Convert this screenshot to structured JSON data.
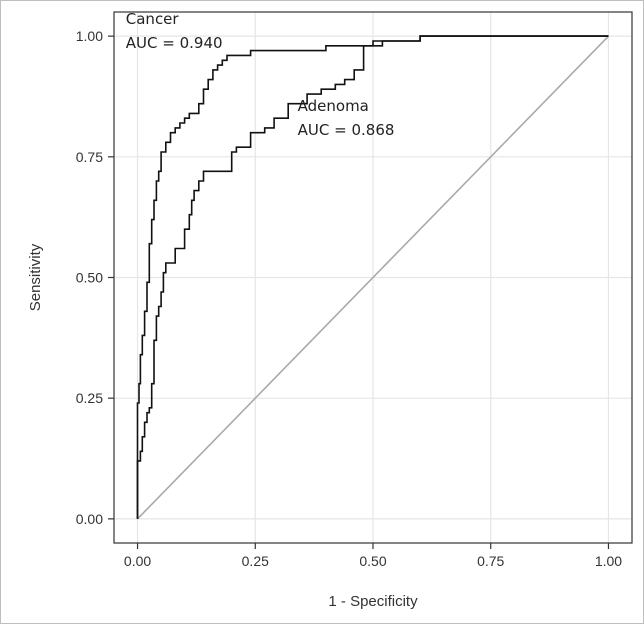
{
  "chart_data": {
    "type": "line",
    "title": "",
    "xlabel": "1 - Specificity",
    "ylabel": "Sensitivity",
    "xlim": [
      -0.05,
      1.05
    ],
    "ylim": [
      -0.05,
      1.05
    ],
    "xticks": [
      "0.00",
      "0.25",
      "0.50",
      "0.75",
      "1.00"
    ],
    "yticks": [
      "0.00",
      "0.25",
      "0.50",
      "0.75",
      "1.00"
    ],
    "grid": true,
    "legend": "none",
    "reference_line": {
      "x": [
        0,
        1
      ],
      "y": [
        0,
        1
      ],
      "color": "#a9a9a9"
    },
    "annotations": [
      {
        "text": "Cancer",
        "x": -0.025,
        "y": 1.025
      },
      {
        "text": "AUC = 0.940",
        "x": -0.025,
        "y": 0.975
      },
      {
        "text": "Adenoma",
        "x": 0.34,
        "y": 0.845
      },
      {
        "text": "AUC = 0.868",
        "x": 0.34,
        "y": 0.795
      }
    ],
    "series": [
      {
        "label": "Cancer",
        "color": "#111111",
        "x": [
          0.0,
          0.0,
          0.003,
          0.003,
          0.006,
          0.006,
          0.01,
          0.01,
          0.015,
          0.015,
          0.02,
          0.02,
          0.025,
          0.025,
          0.03,
          0.03,
          0.035,
          0.035,
          0.04,
          0.04,
          0.045,
          0.045,
          0.05,
          0.05,
          0.055,
          0.055,
          0.06,
          0.06,
          0.07,
          0.07,
          0.08,
          0.08,
          0.09,
          0.09,
          0.1,
          0.1,
          0.11,
          0.11,
          0.13,
          0.13,
          0.14,
          0.14,
          0.15,
          0.15,
          0.16,
          0.16,
          0.17,
          0.17,
          0.18,
          0.18,
          0.19,
          0.19,
          0.2,
          0.2,
          0.24,
          0.24,
          0.33,
          0.33,
          0.4,
          0.4,
          0.5,
          0.5,
          0.6,
          0.6,
          0.7,
          0.7,
          1.0
        ],
        "y": [
          0.0,
          0.24,
          0.24,
          0.28,
          0.28,
          0.34,
          0.34,
          0.38,
          0.38,
          0.43,
          0.43,
          0.49,
          0.49,
          0.57,
          0.57,
          0.62,
          0.62,
          0.66,
          0.66,
          0.7,
          0.7,
          0.72,
          0.72,
          0.76,
          0.76,
          0.76,
          0.76,
          0.78,
          0.78,
          0.8,
          0.8,
          0.81,
          0.81,
          0.82,
          0.82,
          0.83,
          0.83,
          0.84,
          0.84,
          0.86,
          0.86,
          0.89,
          0.89,
          0.91,
          0.91,
          0.93,
          0.93,
          0.94,
          0.94,
          0.95,
          0.95,
          0.96,
          0.96,
          0.96,
          0.96,
          0.97,
          0.97,
          0.97,
          0.97,
          0.98,
          0.98,
          0.99,
          0.99,
          1.0,
          1.0,
          1.0,
          1.0
        ]
      },
      {
        "label": "Adenoma",
        "color": "#111111",
        "x": [
          0.0,
          0.0,
          0.006,
          0.006,
          0.01,
          0.01,
          0.015,
          0.015,
          0.02,
          0.02,
          0.025,
          0.025,
          0.03,
          0.03,
          0.035,
          0.035,
          0.04,
          0.04,
          0.045,
          0.045,
          0.05,
          0.05,
          0.055,
          0.055,
          0.06,
          0.06,
          0.07,
          0.07,
          0.08,
          0.08,
          0.1,
          0.1,
          0.11,
          0.11,
          0.115,
          0.115,
          0.12,
          0.12,
          0.13,
          0.13,
          0.14,
          0.14,
          0.2,
          0.2,
          0.21,
          0.21,
          0.24,
          0.24,
          0.27,
          0.27,
          0.29,
          0.29,
          0.32,
          0.32,
          0.36,
          0.36,
          0.39,
          0.39,
          0.42,
          0.42,
          0.44,
          0.44,
          0.46,
          0.46,
          0.48,
          0.48,
          0.5,
          0.5,
          0.52,
          0.52,
          0.54,
          0.54,
          0.6,
          0.6,
          0.7,
          0.7,
          1.0
        ],
        "y": [
          0.0,
          0.12,
          0.12,
          0.14,
          0.14,
          0.17,
          0.17,
          0.2,
          0.2,
          0.22,
          0.22,
          0.23,
          0.23,
          0.28,
          0.28,
          0.37,
          0.37,
          0.42,
          0.42,
          0.44,
          0.44,
          0.47,
          0.47,
          0.51,
          0.51,
          0.53,
          0.53,
          0.53,
          0.53,
          0.56,
          0.56,
          0.6,
          0.6,
          0.63,
          0.63,
          0.66,
          0.66,
          0.68,
          0.68,
          0.7,
          0.7,
          0.72,
          0.72,
          0.76,
          0.76,
          0.77,
          0.77,
          0.8,
          0.8,
          0.81,
          0.81,
          0.83,
          0.83,
          0.86,
          0.86,
          0.88,
          0.88,
          0.89,
          0.89,
          0.9,
          0.9,
          0.91,
          0.91,
          0.93,
          0.93,
          0.98,
          0.98,
          0.98,
          0.98,
          0.99,
          0.99,
          0.99,
          0.99,
          1.0,
          1.0,
          1.0,
          1.0
        ]
      }
    ]
  }
}
